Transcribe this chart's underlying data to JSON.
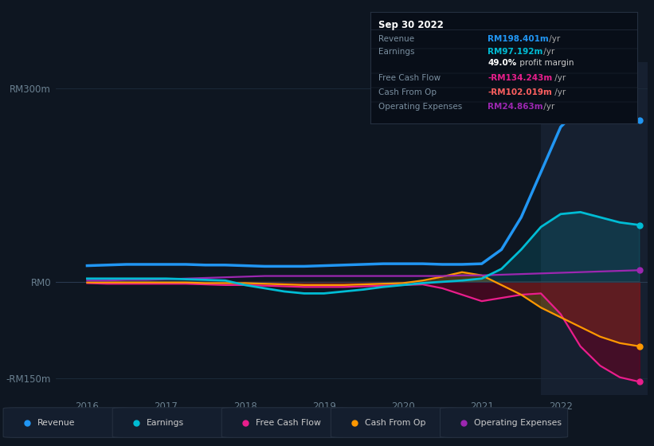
{
  "bg_color": "#0e1621",
  "plot_bg": "#0e1621",
  "highlight_bg": "#162030",
  "grid_color": "#1e2d3d",
  "ylim": [
    -175,
    340
  ],
  "xlim": [
    2015.6,
    2023.1
  ],
  "xticks": [
    2016,
    2017,
    2018,
    2019,
    2020,
    2021,
    2022
  ],
  "ytick_vals": [
    300,
    0,
    -150
  ],
  "ytick_labels": [
    "RM300m",
    "RM0",
    "-RM150m"
  ],
  "colors": {
    "revenue": "#2196f3",
    "earnings": "#00bcd4",
    "free_cash_flow": "#e91e8c",
    "cash_from_op": "#ff9800",
    "operating_expenses": "#9c27b0"
  },
  "highlight_x_start": 2021.75,
  "legend": [
    {
      "label": "Revenue",
      "color": "#2196f3"
    },
    {
      "label": "Earnings",
      "color": "#00bcd4"
    },
    {
      "label": "Free Cash Flow",
      "color": "#e91e8c"
    },
    {
      "label": "Cash From Op",
      "color": "#ff9800"
    },
    {
      "label": "Operating Expenses",
      "color": "#9c27b0"
    }
  ],
  "data": {
    "x": [
      2016.0,
      2016.25,
      2016.5,
      2016.75,
      2017.0,
      2017.25,
      2017.5,
      2017.75,
      2018.0,
      2018.25,
      2018.5,
      2018.75,
      2019.0,
      2019.25,
      2019.5,
      2019.75,
      2020.0,
      2020.25,
      2020.5,
      2020.75,
      2021.0,
      2021.25,
      2021.5,
      2021.75,
      2022.0,
      2022.25,
      2022.5,
      2022.75,
      2023.0
    ],
    "revenue": [
      25,
      26,
      27,
      27,
      27,
      27,
      26,
      26,
      25,
      24,
      24,
      24,
      25,
      26,
      27,
      28,
      28,
      28,
      27,
      27,
      28,
      50,
      100,
      170,
      240,
      270,
      265,
      255,
      250
    ],
    "earnings": [
      5,
      5,
      5,
      5,
      5,
      4,
      3,
      2,
      -5,
      -10,
      -15,
      -18,
      -18,
      -15,
      -12,
      -8,
      -5,
      -2,
      0,
      2,
      5,
      20,
      50,
      85,
      105,
      108,
      100,
      92,
      88
    ],
    "free_cash_flow": [
      -2,
      -3,
      -3,
      -3,
      -3,
      -3,
      -4,
      -5,
      -5,
      -6,
      -7,
      -8,
      -8,
      -8,
      -7,
      -6,
      -5,
      -4,
      -10,
      -20,
      -30,
      -25,
      -20,
      -18,
      -50,
      -100,
      -130,
      -148,
      -155
    ],
    "cash_from_op": [
      -1,
      -1,
      -1,
      -1,
      -1,
      -1,
      -2,
      -2,
      -2,
      -3,
      -4,
      -5,
      -5,
      -5,
      -4,
      -3,
      -2,
      2,
      8,
      15,
      10,
      -5,
      -20,
      -40,
      -55,
      -70,
      -85,
      -95,
      -100
    ],
    "operating_expenses": [
      2,
      2,
      3,
      3,
      4,
      5,
      6,
      7,
      8,
      9,
      9,
      9,
      9,
      9,
      9,
      9,
      9,
      9,
      9,
      10,
      10,
      11,
      12,
      13,
      14,
      15,
      16,
      17,
      18
    ]
  },
  "tooltip": {
    "title": "Sep 30 2022",
    "title_color": "#ffffff",
    "bg": "#080e18",
    "border": "#253040",
    "rows": [
      {
        "label": "Revenue",
        "value": "RM198.401m /yr",
        "label_color": "#7a8fa0",
        "value_color": "#2196f3"
      },
      {
        "label": "Earnings",
        "value": "RM97.192m /yr",
        "label_color": "#7a8fa0",
        "value_color": "#00bcd4"
      },
      {
        "label": "",
        "value": "49.0% profit margin",
        "label_color": "",
        "value_color": "#ffffff",
        "bold": "49.0%"
      },
      {
        "label": "Free Cash Flow",
        "value": "-RM134.243m /yr",
        "label_color": "#7a8fa0",
        "value_color": "#e91e8c"
      },
      {
        "label": "Cash From Op",
        "value": "-RM102.019m /yr",
        "label_color": "#7a8fa0",
        "value_color": "#ff6060"
      },
      {
        "label": "Operating Expenses",
        "value": "RM24.863m /yr",
        "label_color": "#7a8fa0",
        "value_color": "#9c27b0"
      }
    ]
  }
}
